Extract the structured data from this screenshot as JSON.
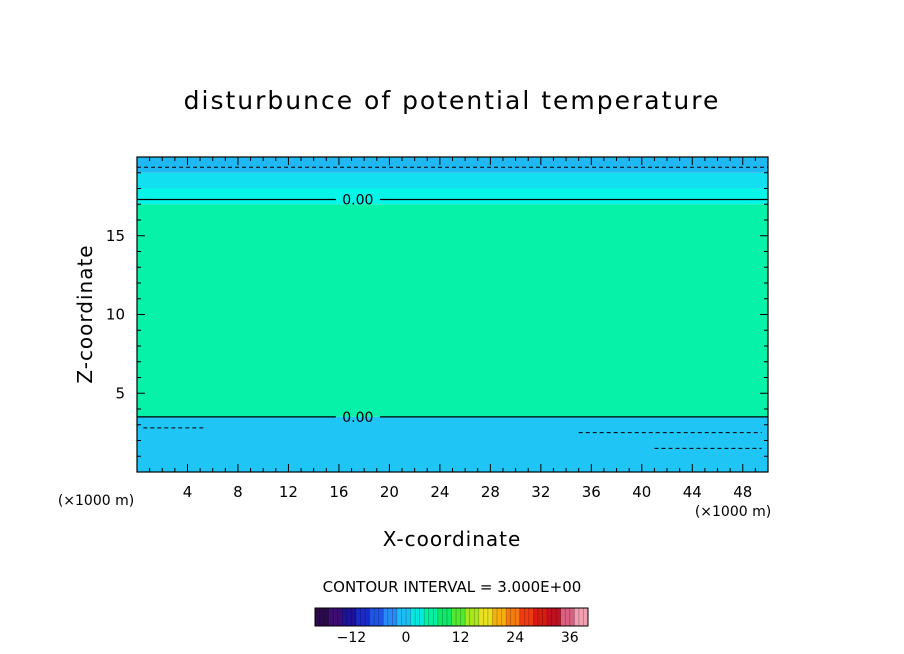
{
  "chart_data": {
    "type": "heatmap",
    "title": "disturbunce of potential temperature",
    "xlabel": "X-coordinate",
    "ylabel": "Z-coordinate",
    "x_unit": "(×1000 m)",
    "y_unit": "(×1000 m)",
    "xlim": [
      0,
      50
    ],
    "ylim": [
      0,
      20
    ],
    "x_ticks": [
      4,
      8,
      12,
      16,
      20,
      24,
      28,
      32,
      36,
      40,
      44,
      48
    ],
    "y_ticks": [
      5,
      10,
      15
    ],
    "contour_interval_text": "CONTOUR INTERVAL = 3.000E+00",
    "contour_label_text": "0.00",
    "zero_contours_z": [
      17.3,
      3.5
    ],
    "color_bands": [
      {
        "z_from": 19.0,
        "z_to": 20.0,
        "value": -1.5,
        "color": "#1fb8f2"
      },
      {
        "z_from": 18.0,
        "z_to": 19.0,
        "value": -1.0,
        "color": "#12e0f0"
      },
      {
        "z_from": 17.0,
        "z_to": 18.0,
        "value": -0.3,
        "color": "#05f5e8"
      },
      {
        "z_from": 3.5,
        "z_to": 17.0,
        "value": 0.5,
        "color": "#05f2a8"
      },
      {
        "z_from": 0.0,
        "z_to": 3.5,
        "value": -1.5,
        "color": "#1fc6f5"
      }
    ],
    "colorbar": {
      "ticks": [
        -12,
        0,
        12,
        24,
        36
      ],
      "range": [
        -20,
        40
      ],
      "colors": [
        "#2a0a4a",
        "#3c0d75",
        "#1d1298",
        "#1a2ac8",
        "#1e55e6",
        "#2a8af5",
        "#1fbdf5",
        "#05e8e0",
        "#05f0a0",
        "#10e868",
        "#50e830",
        "#a8e620",
        "#e8e020",
        "#f5b010",
        "#f57a10",
        "#f03a10",
        "#d81a10",
        "#c01020",
        "#d86080",
        "#f0a0b0"
      ]
    }
  }
}
